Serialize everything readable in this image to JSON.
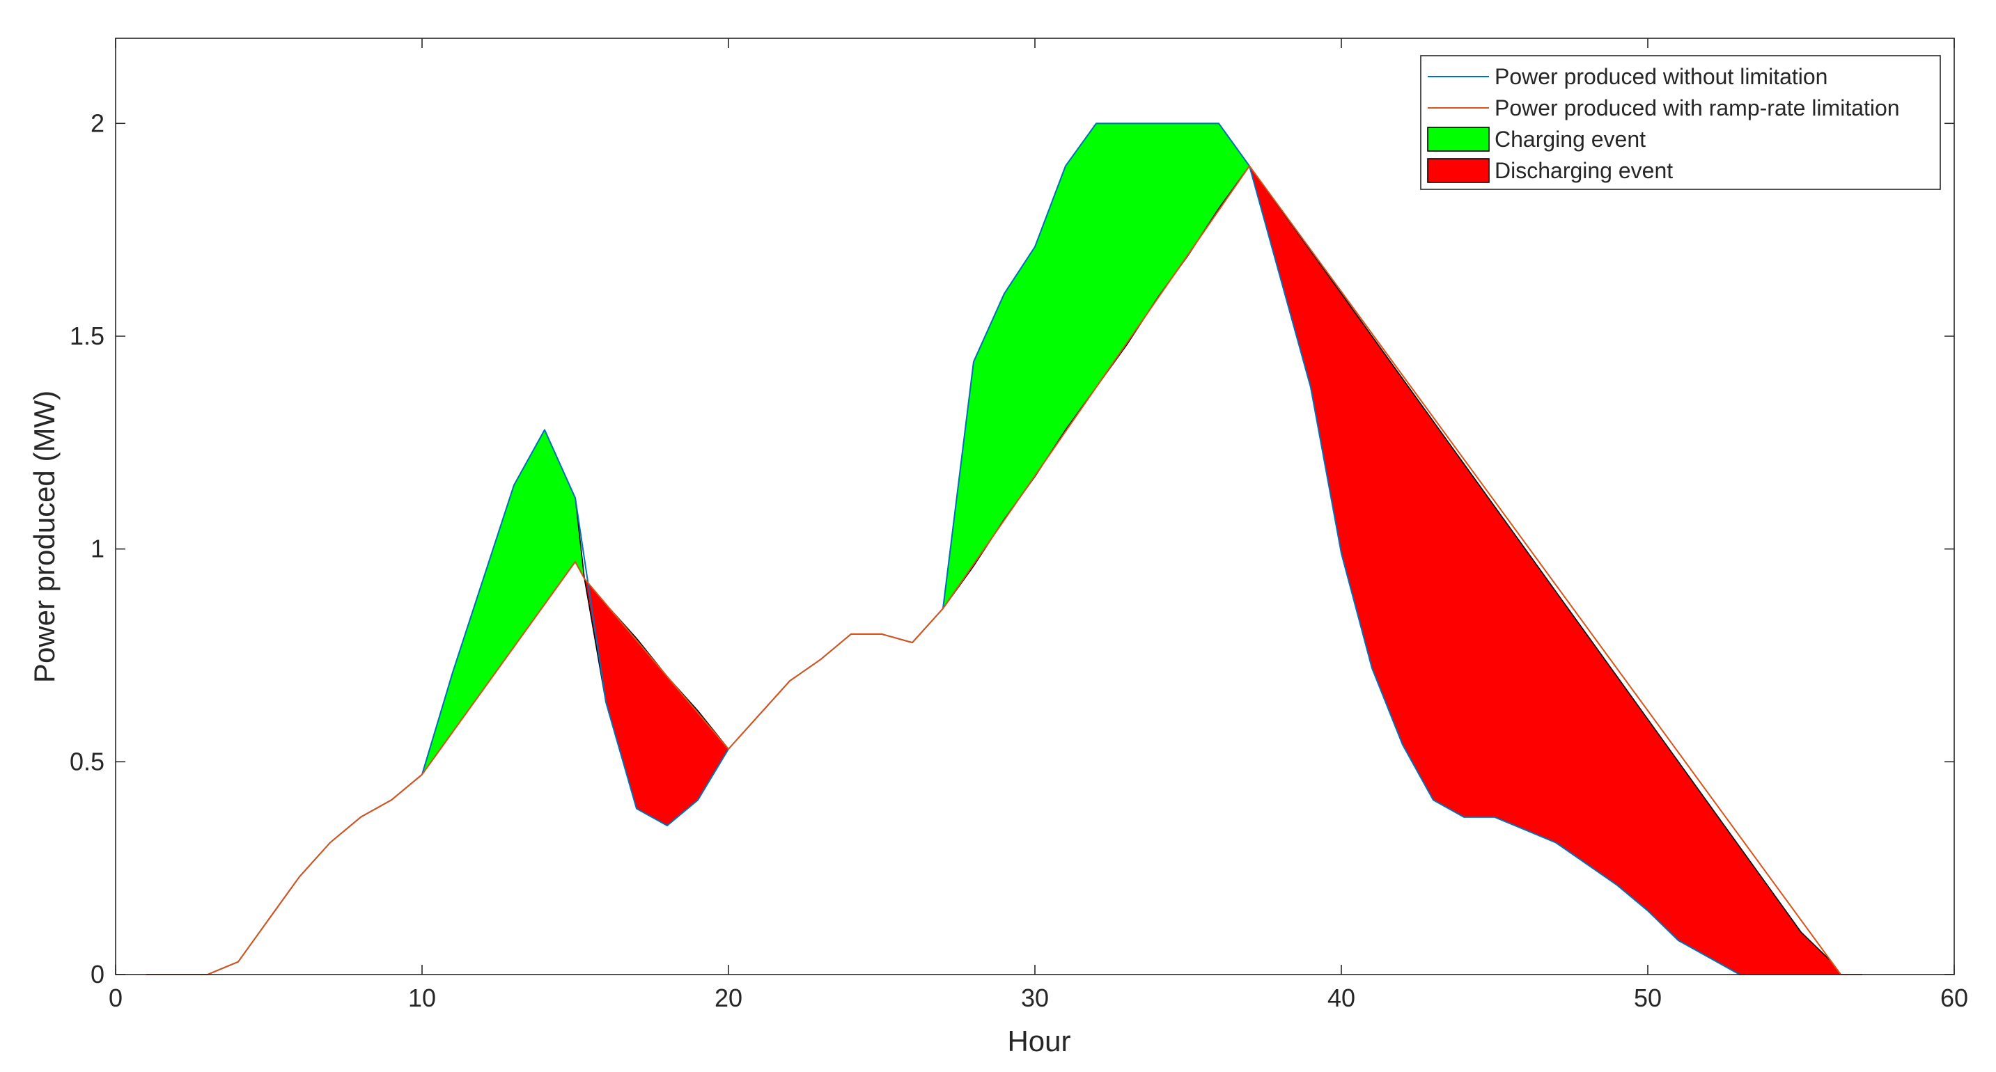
{
  "chart_data": {
    "type": "line",
    "xlabel": "Hour",
    "ylabel": "Power produced (MW)",
    "xlim": [
      0,
      60
    ],
    "ylim": [
      0,
      2.2
    ],
    "xticks": [
      "0",
      "10",
      "20",
      "30",
      "40",
      "50",
      "60"
    ],
    "yticks": [
      "0",
      "0.5",
      "1",
      "1.5",
      "2"
    ],
    "grid": false,
    "legend_position": "top-right",
    "series": [
      {
        "name": "Power produced without limitation",
        "color": "#0072BD",
        "x": [
          1,
          2,
          3,
          4,
          5,
          6,
          7,
          8,
          9,
          10,
          11,
          12,
          13,
          14,
          15,
          16,
          17,
          18,
          19,
          20,
          21,
          22,
          23,
          24,
          25,
          26,
          27,
          28,
          29,
          30,
          31,
          32,
          33,
          34,
          35,
          36,
          37,
          38,
          39,
          40,
          41,
          42,
          43,
          44,
          45,
          46,
          47,
          48,
          49,
          50,
          51,
          52,
          53,
          54,
          55,
          56,
          57
        ],
        "y": [
          0,
          0,
          0,
          0.03,
          0.13,
          0.23,
          0.31,
          0.37,
          0.41,
          0.47,
          0.71,
          0.93,
          1.15,
          1.28,
          1.12,
          0.64,
          0.39,
          0.35,
          0.41,
          0.53,
          0.61,
          0.69,
          0.74,
          0.8,
          0.8,
          0.78,
          0.86,
          1.44,
          1.6,
          1.71,
          1.9,
          2.0,
          2.0,
          2.0,
          2.0,
          2.0,
          1.9,
          1.64,
          1.38,
          0.99,
          0.72,
          0.54,
          0.41,
          0.37,
          0.37,
          0.34,
          0.31,
          0.26,
          0.21,
          0.15,
          0.08,
          0.04,
          0,
          0,
          0,
          0,
          0
        ]
      },
      {
        "name": "Power produced with ramp-rate limitation",
        "color": "#D95319",
        "x": [
          1,
          2,
          3,
          4,
          5,
          6,
          7,
          8,
          9,
          10,
          15,
          15.3,
          20,
          21,
          22,
          23,
          24,
          25,
          26,
          27,
          37,
          56.3,
          57
        ],
        "y": [
          0,
          0,
          0,
          0.03,
          0.13,
          0.23,
          0.31,
          0.37,
          0.41,
          0.47,
          0.97,
          0.93,
          0.53,
          0.61,
          0.69,
          0.74,
          0.8,
          0.8,
          0.78,
          0.86,
          1.9,
          0,
          0
        ]
      }
    ],
    "events": [
      {
        "name": "Charging event",
        "color": "#00FF00",
        "regions": [
          {
            "x": [
              10,
              11,
              12,
              13,
              14,
              15,
              15.3
            ],
            "upper": [
              0.47,
              0.71,
              0.93,
              1.15,
              1.28,
              1.12,
              0.93
            ],
            "lower": [
              0.47,
              0.57,
              0.67,
              0.77,
              0.87,
              0.97,
              0.93
            ]
          },
          {
            "x": [
              27,
              28,
              29,
              30,
              31,
              32,
              33,
              34,
              35,
              36,
              37
            ],
            "upper": [
              0.86,
              1.44,
              1.6,
              1.71,
              1.9,
              2.0,
              2.0,
              2.0,
              2.0,
              2.0,
              1.9
            ],
            "lower": [
              0.86,
              0.96,
              1.07,
              1.17,
              1.28,
              1.38,
              1.48,
              1.59,
              1.69,
              1.8,
              1.9
            ]
          }
        ]
      },
      {
        "name": "Discharging event",
        "color": "#FF0000",
        "regions": [
          {
            "x": [
              15.3,
              16,
              17,
              18,
              19,
              20
            ],
            "upper": [
              0.93,
              0.87,
              0.79,
              0.7,
              0.62,
              0.53
            ],
            "lower": [
              0.93,
              0.64,
              0.39,
              0.35,
              0.41,
              0.53
            ]
          },
          {
            "x": [
              37,
              38,
              39,
              40,
              41,
              42,
              43,
              44,
              45,
              46,
              47,
              48,
              49,
              50,
              51,
              52,
              53,
              54,
              55,
              56,
              56.3
            ],
            "upper": [
              1.9,
              1.8,
              1.7,
              1.6,
              1.5,
              1.4,
              1.3,
              1.2,
              1.1,
              1.0,
              0.9,
              0.8,
              0.7,
              0.6,
              0.5,
              0.4,
              0.3,
              0.2,
              0.1,
              0.03,
              0
            ],
            "lower": [
              1.9,
              1.64,
              1.38,
              0.99,
              0.72,
              0.54,
              0.41,
              0.37,
              0.37,
              0.34,
              0.31,
              0.26,
              0.21,
              0.15,
              0.08,
              0.04,
              0,
              0,
              0,
              0,
              0
            ]
          }
        ]
      }
    ],
    "legend": [
      {
        "label": "Power produced without limitation",
        "kind": "line",
        "color": "#0072BD"
      },
      {
        "label": "Power produced with ramp-rate limitation",
        "kind": "line",
        "color": "#D95319"
      },
      {
        "label": "Charging event",
        "kind": "patch",
        "color": "#00FF00"
      },
      {
        "label": "Discharging event",
        "kind": "patch",
        "color": "#FF0000"
      }
    ]
  }
}
